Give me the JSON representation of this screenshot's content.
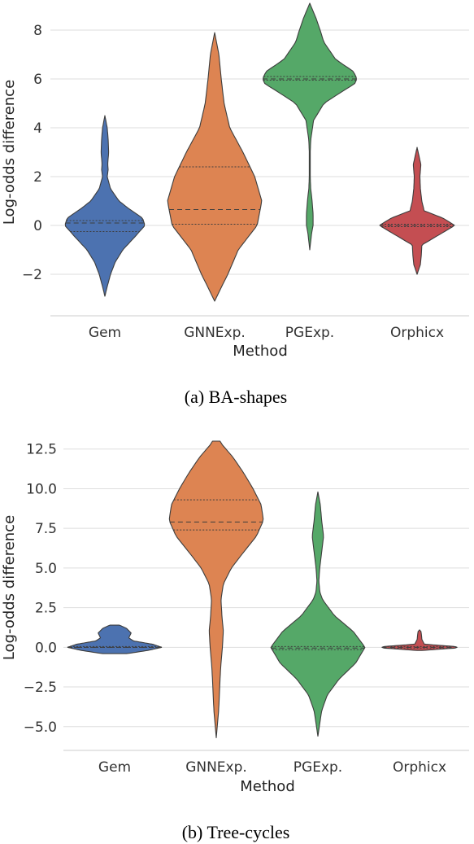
{
  "chart_data": [
    {
      "type": "violin",
      "caption": "(a) BA-shapes",
      "xlabel": "Method",
      "ylabel": "Log-odds difference",
      "categories": [
        "Gem",
        "GNNExp.",
        "PGExp.",
        "Orphicx"
      ],
      "ytick_labels": [
        "−2",
        "0",
        "2",
        "4",
        "6",
        "8"
      ],
      "yticks": [
        -2,
        0,
        2,
        4,
        6,
        8
      ],
      "ylim": [
        -3.7,
        9.1
      ],
      "grid": true,
      "colors": [
        "#4c72b0",
        "#dd8452",
        "#55a868",
        "#c44e52"
      ],
      "series": [
        {
          "category": "Gem",
          "min": -2.9,
          "max": 4.5,
          "q1": -0.25,
          "median": 0.1,
          "q3": 0.2,
          "profile": [
            [
              -2.9,
              0.0
            ],
            [
              -2.5,
              0.05
            ],
            [
              -2.0,
              0.12
            ],
            [
              -1.5,
              0.22
            ],
            [
              -1.0,
              0.38
            ],
            [
              -0.5,
              0.62
            ],
            [
              0.0,
              0.85
            ],
            [
              0.3,
              0.8
            ],
            [
              0.7,
              0.5
            ],
            [
              1.0,
              0.3
            ],
            [
              1.5,
              0.12
            ],
            [
              2.0,
              0.05
            ],
            [
              2.3,
              0.07
            ],
            [
              2.5,
              0.06
            ],
            [
              3.0,
              0.08
            ],
            [
              3.5,
              0.07
            ],
            [
              4.0,
              0.05
            ],
            [
              4.5,
              0.0
            ]
          ]
        },
        {
          "category": "GNNExp.",
          "min": -3.1,
          "max": 7.9,
          "q1": 0.05,
          "median": 0.65,
          "q3": 2.4,
          "profile": [
            [
              -3.1,
              0.0
            ],
            [
              -2.5,
              0.15
            ],
            [
              -2.0,
              0.28
            ],
            [
              -1.0,
              0.5
            ],
            [
              0.0,
              0.9
            ],
            [
              1.0,
              1.0
            ],
            [
              2.0,
              0.85
            ],
            [
              3.0,
              0.6
            ],
            [
              4.0,
              0.32
            ],
            [
              5.0,
              0.2
            ],
            [
              6.0,
              0.14
            ],
            [
              7.0,
              0.09
            ],
            [
              7.9,
              0.0
            ]
          ]
        },
        {
          "category": "PGExp.",
          "min": -1.0,
          "max": 9.1,
          "q1": 5.95,
          "median": 6.0,
          "q3": 6.1,
          "profile": [
            [
              -1.0,
              0.0
            ],
            [
              -0.3,
              0.04
            ],
            [
              0.0,
              0.07
            ],
            [
              0.5,
              0.07
            ],
            [
              1.0,
              0.05
            ],
            [
              1.5,
              0.02
            ],
            [
              2.0,
              0.01
            ],
            [
              3.0,
              0.01
            ],
            [
              3.5,
              0.02
            ],
            [
              4.3,
              0.08
            ],
            [
              5.0,
              0.3
            ],
            [
              5.5,
              0.7
            ],
            [
              5.8,
              0.95
            ],
            [
              6.0,
              1.0
            ],
            [
              6.3,
              0.93
            ],
            [
              6.8,
              0.55
            ],
            [
              7.5,
              0.3
            ],
            [
              8.0,
              0.22
            ],
            [
              8.5,
              0.13
            ],
            [
              9.1,
              0.0
            ]
          ]
        },
        {
          "category": "Orphicx",
          "min": -2.0,
          "max": 3.2,
          "q1": -0.05,
          "median": 0.0,
          "q3": 0.05,
          "profile": [
            [
              -2.0,
              0.0
            ],
            [
              -1.6,
              0.07
            ],
            [
              -1.2,
              0.09
            ],
            [
              -0.8,
              0.1
            ],
            [
              -0.4,
              0.45
            ],
            [
              0.0,
              0.8
            ],
            [
              0.3,
              0.55
            ],
            [
              0.6,
              0.15
            ],
            [
              1.0,
              0.1
            ],
            [
              1.5,
              0.07
            ],
            [
              2.0,
              0.06
            ],
            [
              2.5,
              0.08
            ],
            [
              3.2,
              0.0
            ]
          ]
        }
      ]
    },
    {
      "type": "violin",
      "caption": "(b) Tree-cycles",
      "xlabel": "Method",
      "ylabel": "Log-odds difference",
      "categories": [
        "Gem",
        "GNNExp.",
        "PGExp.",
        "Orphicx"
      ],
      "ytick_labels": [
        "−5.0",
        "−2.5",
        "0.0",
        "2.5",
        "5.0",
        "7.5",
        "10.0",
        "12.5"
      ],
      "yticks": [
        -5.0,
        -2.5,
        0.0,
        2.5,
        5.0,
        7.5,
        10.0,
        12.5
      ],
      "ylim": [
        -6.5,
        13.0
      ],
      "grid": true,
      "colors": [
        "#4c72b0",
        "#dd8452",
        "#55a868",
        "#c44e52"
      ],
      "series": [
        {
          "category": "Gem",
          "min": -0.4,
          "max": 1.4,
          "q1": 0.0,
          "median": 0.0,
          "q3": 0.05,
          "profile": [
            [
              -0.4,
              0.25
            ],
            [
              -0.2,
              0.7
            ],
            [
              0.0,
              1.0
            ],
            [
              0.2,
              0.8
            ],
            [
              0.4,
              0.4
            ],
            [
              0.6,
              0.3
            ],
            [
              0.9,
              0.35
            ],
            [
              1.2,
              0.25
            ],
            [
              1.4,
              0.1
            ]
          ]
        },
        {
          "category": "GNNExp.",
          "min": -5.7,
          "max": 13.0,
          "q1": 7.4,
          "median": 7.9,
          "q3": 9.3,
          "profile": [
            [
              -5.7,
              0.0
            ],
            [
              -4.0,
              0.05
            ],
            [
              -2.0,
              0.08
            ],
            [
              -1.0,
              0.1
            ],
            [
              0.0,
              0.13
            ],
            [
              1.0,
              0.15
            ],
            [
              2.0,
              0.12
            ],
            [
              3.0,
              0.1
            ],
            [
              4.0,
              0.15
            ],
            [
              5.0,
              0.32
            ],
            [
              6.0,
              0.58
            ],
            [
              7.0,
              0.85
            ],
            [
              8.0,
              1.0
            ],
            [
              9.0,
              0.95
            ],
            [
              10.0,
              0.78
            ],
            [
              11.0,
              0.58
            ],
            [
              12.0,
              0.35
            ],
            [
              12.8,
              0.12
            ],
            [
              13.0,
              0.08
            ]
          ]
        },
        {
          "category": "PGExp.",
          "min": -5.6,
          "max": 9.8,
          "q1": -0.15,
          "median": -0.05,
          "q3": 0.05,
          "profile": [
            [
              -5.6,
              0.0
            ],
            [
              -4.0,
              0.08
            ],
            [
              -3.0,
              0.2
            ],
            [
              -2.0,
              0.45
            ],
            [
              -1.0,
              0.8
            ],
            [
              0.0,
              1.0
            ],
            [
              1.0,
              0.75
            ],
            [
              2.0,
              0.35
            ],
            [
              3.0,
              0.1
            ],
            [
              3.5,
              0.04
            ],
            [
              4.2,
              0.02
            ],
            [
              5.0,
              0.04
            ],
            [
              6.0,
              0.08
            ],
            [
              7.0,
              0.12
            ],
            [
              8.0,
              0.08
            ],
            [
              9.0,
              0.05
            ],
            [
              9.8,
              0.0
            ]
          ]
        },
        {
          "category": "Orphicx",
          "min": -0.2,
          "max": 1.1,
          "q1": -0.05,
          "median": 0.0,
          "q3": 0.05,
          "profile": [
            [
              -0.2,
              0.05
            ],
            [
              -0.05,
              0.75
            ],
            [
              0.0,
              0.8
            ],
            [
              0.05,
              0.75
            ],
            [
              0.2,
              0.1
            ],
            [
              0.5,
              0.05
            ],
            [
              0.8,
              0.04
            ],
            [
              1.0,
              0.03
            ],
            [
              1.1,
              0.0
            ]
          ]
        }
      ]
    }
  ]
}
